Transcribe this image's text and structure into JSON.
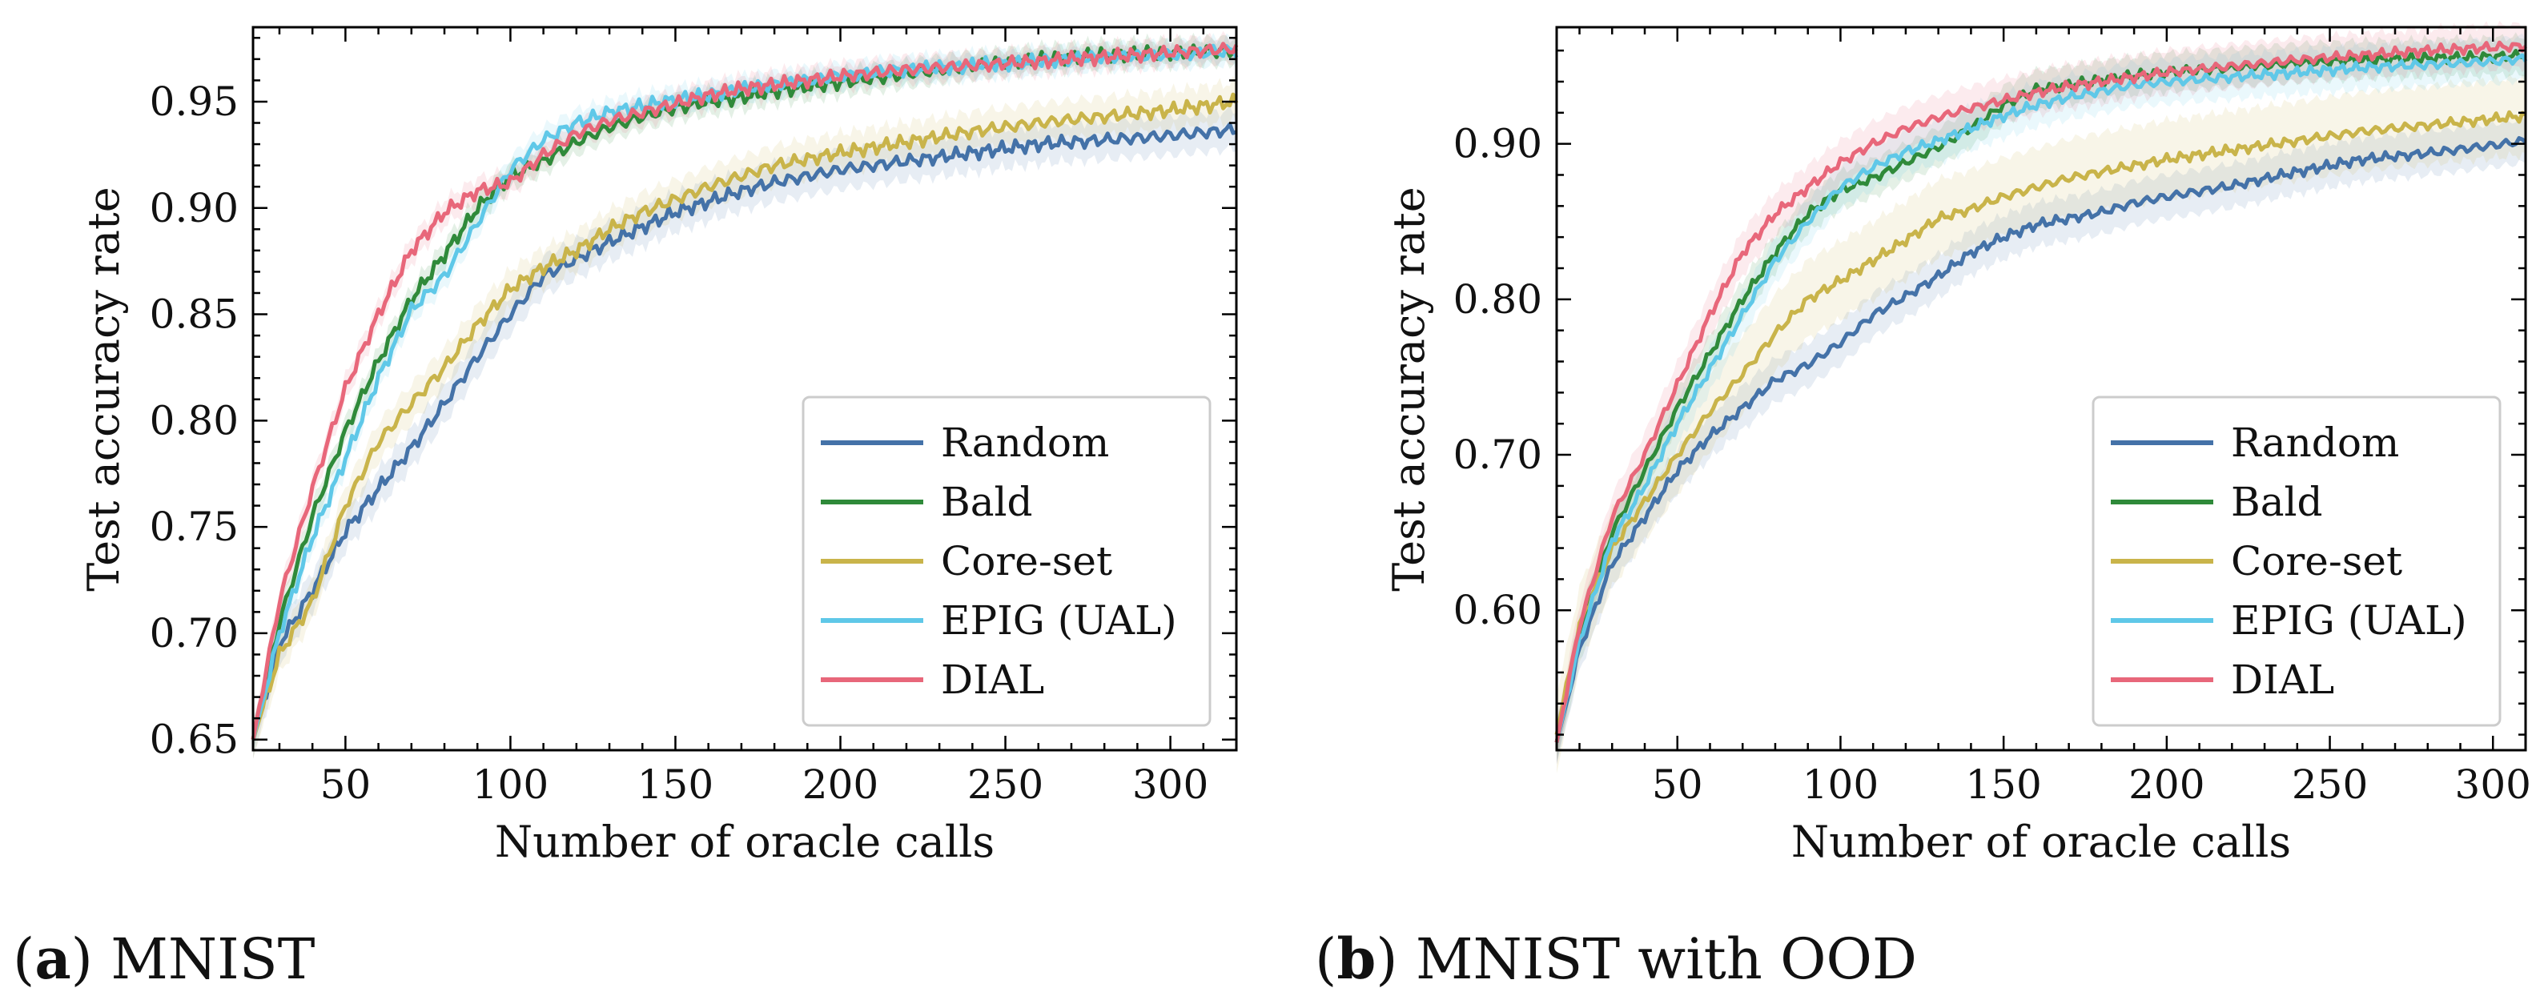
{
  "chart_data": [
    {
      "type": "line",
      "caption_letter": "a",
      "caption_text": "MNIST",
      "xlabel": "Number of oracle calls",
      "ylabel": "Test accuracy rate",
      "xlim": [
        22,
        320
      ],
      "ylim": [
        0.645,
        0.985
      ],
      "xticks": [
        50,
        100,
        150,
        200,
        250,
        300
      ],
      "xtick_labels": [
        "50",
        "100",
        "150",
        "200",
        "250",
        "300"
      ],
      "yticks": [
        0.65,
        0.7,
        0.75,
        0.8,
        0.85,
        0.9,
        0.95
      ],
      "ytick_labels": [
        "0.65",
        "0.70",
        "0.75",
        "0.80",
        "0.85",
        "0.90",
        "0.95"
      ],
      "legend_position": "lower-right",
      "series": [
        {
          "name": "Random",
          "color": "#4472a8",
          "band": 0.009,
          "x": [
            22,
            30,
            40,
            50,
            60,
            70,
            80,
            90,
            100,
            110,
            120,
            130,
            140,
            150,
            160,
            170,
            180,
            190,
            200,
            220,
            240,
            260,
            280,
            300,
            320
          ],
          "y": [
            0.65,
            0.695,
            0.72,
            0.748,
            0.768,
            0.787,
            0.808,
            0.83,
            0.85,
            0.868,
            0.876,
            0.884,
            0.891,
            0.898,
            0.903,
            0.908,
            0.912,
            0.915,
            0.918,
            0.922,
            0.926,
            0.93,
            0.932,
            0.934,
            0.937
          ]
        },
        {
          "name": "Bald",
          "color": "#2f8a3a",
          "band": 0.006,
          "x": [
            22,
            30,
            40,
            50,
            60,
            70,
            80,
            90,
            100,
            110,
            120,
            130,
            140,
            150,
            160,
            170,
            180,
            190,
            200,
            220,
            240,
            260,
            280,
            300,
            320
          ],
          "y": [
            0.65,
            0.705,
            0.755,
            0.795,
            0.828,
            0.857,
            0.878,
            0.9,
            0.915,
            0.922,
            0.931,
            0.938,
            0.943,
            0.947,
            0.95,
            0.952,
            0.955,
            0.957,
            0.959,
            0.963,
            0.967,
            0.97,
            0.972,
            0.973,
            0.974
          ]
        },
        {
          "name": "Core-set",
          "color": "#c9b44a",
          "band": 0.009,
          "x": [
            22,
            30,
            40,
            50,
            60,
            70,
            80,
            90,
            100,
            110,
            120,
            130,
            140,
            150,
            160,
            170,
            180,
            190,
            200,
            220,
            240,
            260,
            280,
            300,
            320
          ],
          "y": [
            0.65,
            0.69,
            0.715,
            0.76,
            0.79,
            0.808,
            0.825,
            0.845,
            0.862,
            0.872,
            0.88,
            0.89,
            0.898,
            0.904,
            0.91,
            0.915,
            0.92,
            0.923,
            0.926,
            0.931,
            0.936,
            0.94,
            0.943,
            0.946,
            0.95
          ]
        },
        {
          "name": "EPIG (UAL)",
          "color": "#5fc8e8",
          "band": 0.006,
          "x": [
            22,
            30,
            40,
            50,
            60,
            70,
            80,
            90,
            100,
            110,
            120,
            130,
            140,
            150,
            160,
            170,
            180,
            190,
            200,
            220,
            240,
            260,
            280,
            300,
            320
          ],
          "y": [
            0.65,
            0.7,
            0.745,
            0.782,
            0.82,
            0.852,
            0.868,
            0.893,
            0.918,
            0.932,
            0.94,
            0.945,
            0.948,
            0.951,
            0.953,
            0.956,
            0.958,
            0.96,
            0.962,
            0.965,
            0.967,
            0.969,
            0.971,
            0.972,
            0.974
          ]
        },
        {
          "name": "DIAL",
          "color": "#e8677a",
          "band": 0.006,
          "x": [
            22,
            30,
            40,
            50,
            60,
            70,
            80,
            90,
            100,
            110,
            120,
            130,
            140,
            150,
            160,
            170,
            180,
            190,
            200,
            220,
            240,
            260,
            280,
            300,
            320
          ],
          "y": [
            0.65,
            0.715,
            0.768,
            0.815,
            0.85,
            0.88,
            0.898,
            0.908,
            0.912,
            0.925,
            0.935,
            0.941,
            0.945,
            0.949,
            0.953,
            0.956,
            0.958,
            0.96,
            0.962,
            0.965,
            0.967,
            0.969,
            0.971,
            0.973,
            0.975
          ]
        }
      ]
    },
    {
      "type": "line",
      "caption_letter": "b",
      "caption_text": "MNIST with OOD",
      "xlabel": "Number of oracle calls",
      "ylabel": "Test accuracy rate",
      "xlim": [
        13,
        310
      ],
      "ylim": [
        0.51,
        0.975
      ],
      "xticks": [
        50,
        100,
        150,
        200,
        250,
        300
      ],
      "xtick_labels": [
        "50",
        "100",
        "150",
        "200",
        "250",
        "300"
      ],
      "yticks": [
        0.6,
        0.7,
        0.8,
        0.9
      ],
      "ytick_labels": [
        "0.60",
        "0.70",
        "0.80",
        "0.90"
      ],
      "legend_position": "lower-right",
      "series": [
        {
          "name": "Random",
          "color": "#4472a8",
          "band": 0.014,
          "x": [
            13,
            20,
            30,
            40,
            50,
            60,
            70,
            80,
            90,
            100,
            110,
            120,
            130,
            140,
            150,
            160,
            170,
            180,
            190,
            200,
            220,
            240,
            260,
            280,
            300,
            310
          ],
          "y": [
            0.515,
            0.575,
            0.63,
            0.66,
            0.69,
            0.712,
            0.73,
            0.748,
            0.758,
            0.772,
            0.79,
            0.802,
            0.815,
            0.83,
            0.84,
            0.848,
            0.852,
            0.856,
            0.862,
            0.866,
            0.873,
            0.882,
            0.89,
            0.894,
            0.899,
            0.902
          ]
        },
        {
          "name": "Bald",
          "color": "#2f8a3a",
          "band": 0.012,
          "x": [
            13,
            20,
            30,
            40,
            50,
            60,
            70,
            80,
            90,
            100,
            110,
            120,
            130,
            140,
            150,
            160,
            170,
            180,
            190,
            200,
            220,
            240,
            260,
            280,
            300,
            310
          ],
          "y": [
            0.515,
            0.585,
            0.65,
            0.69,
            0.73,
            0.765,
            0.8,
            0.83,
            0.855,
            0.87,
            0.878,
            0.888,
            0.898,
            0.91,
            0.925,
            0.935,
            0.938,
            0.941,
            0.944,
            0.946,
            0.949,
            0.952,
            0.954,
            0.955,
            0.956,
            0.957
          ]
        },
        {
          "name": "Core-set",
          "color": "#c9b44a",
          "band": 0.025,
          "x": [
            13,
            20,
            30,
            40,
            50,
            60,
            70,
            80,
            90,
            100,
            110,
            120,
            130,
            140,
            150,
            160,
            170,
            180,
            190,
            200,
            220,
            240,
            260,
            280,
            300,
            310
          ],
          "y": [
            0.52,
            0.59,
            0.64,
            0.67,
            0.7,
            0.728,
            0.752,
            0.778,
            0.8,
            0.812,
            0.825,
            0.838,
            0.852,
            0.858,
            0.866,
            0.872,
            0.878,
            0.882,
            0.886,
            0.89,
            0.896,
            0.902,
            0.908,
            0.912,
            0.916,
            0.918
          ]
        },
        {
          "name": "EPIG (UAL)",
          "color": "#5fc8e8",
          "band": 0.014,
          "x": [
            13,
            20,
            30,
            40,
            50,
            60,
            70,
            80,
            90,
            100,
            110,
            120,
            130,
            140,
            150,
            160,
            170,
            180,
            190,
            200,
            220,
            240,
            260,
            280,
            300,
            310
          ],
          "y": [
            0.515,
            0.58,
            0.645,
            0.68,
            0.72,
            0.755,
            0.79,
            0.825,
            0.85,
            0.872,
            0.885,
            0.895,
            0.902,
            0.91,
            0.918,
            0.925,
            0.93,
            0.934,
            0.938,
            0.94,
            0.943,
            0.946,
            0.949,
            0.951,
            0.953,
            0.955
          ]
        },
        {
          "name": "DIAL",
          "color": "#e8677a",
          "band": 0.014,
          "x": [
            13,
            20,
            30,
            40,
            50,
            60,
            70,
            80,
            90,
            100,
            110,
            120,
            130,
            140,
            150,
            160,
            170,
            180,
            190,
            200,
            220,
            240,
            260,
            280,
            300,
            310
          ],
          "y": [
            0.515,
            0.59,
            0.66,
            0.7,
            0.745,
            0.79,
            0.83,
            0.855,
            0.872,
            0.888,
            0.9,
            0.91,
            0.917,
            0.923,
            0.928,
            0.933,
            0.937,
            0.94,
            0.943,
            0.946,
            0.95,
            0.954,
            0.957,
            0.96,
            0.962,
            0.963
          ]
        }
      ]
    }
  ]
}
